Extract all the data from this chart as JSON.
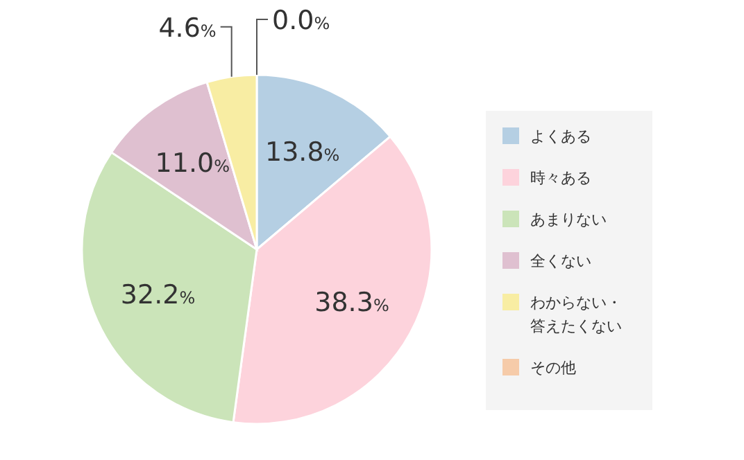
{
  "chart_data": {
    "type": "pie",
    "categories": [
      "よくある",
      "時々ある",
      "あまりない",
      "全くない",
      "わからない・答えたくない",
      "その他"
    ],
    "values": [
      13.8,
      38.3,
      32.2,
      11.0,
      4.6,
      0.0
    ],
    "colors": [
      "#b5cfe3",
      "#fdd3dc",
      "#cbe4b9",
      "#dfc0d0",
      "#f8eda3",
      "#f6cba9"
    ],
    "value_labels": [
      "13.8%",
      "38.3%",
      "32.2%",
      "11.0%",
      "4.6%",
      "0.0%"
    ],
    "legend": "right"
  }
}
